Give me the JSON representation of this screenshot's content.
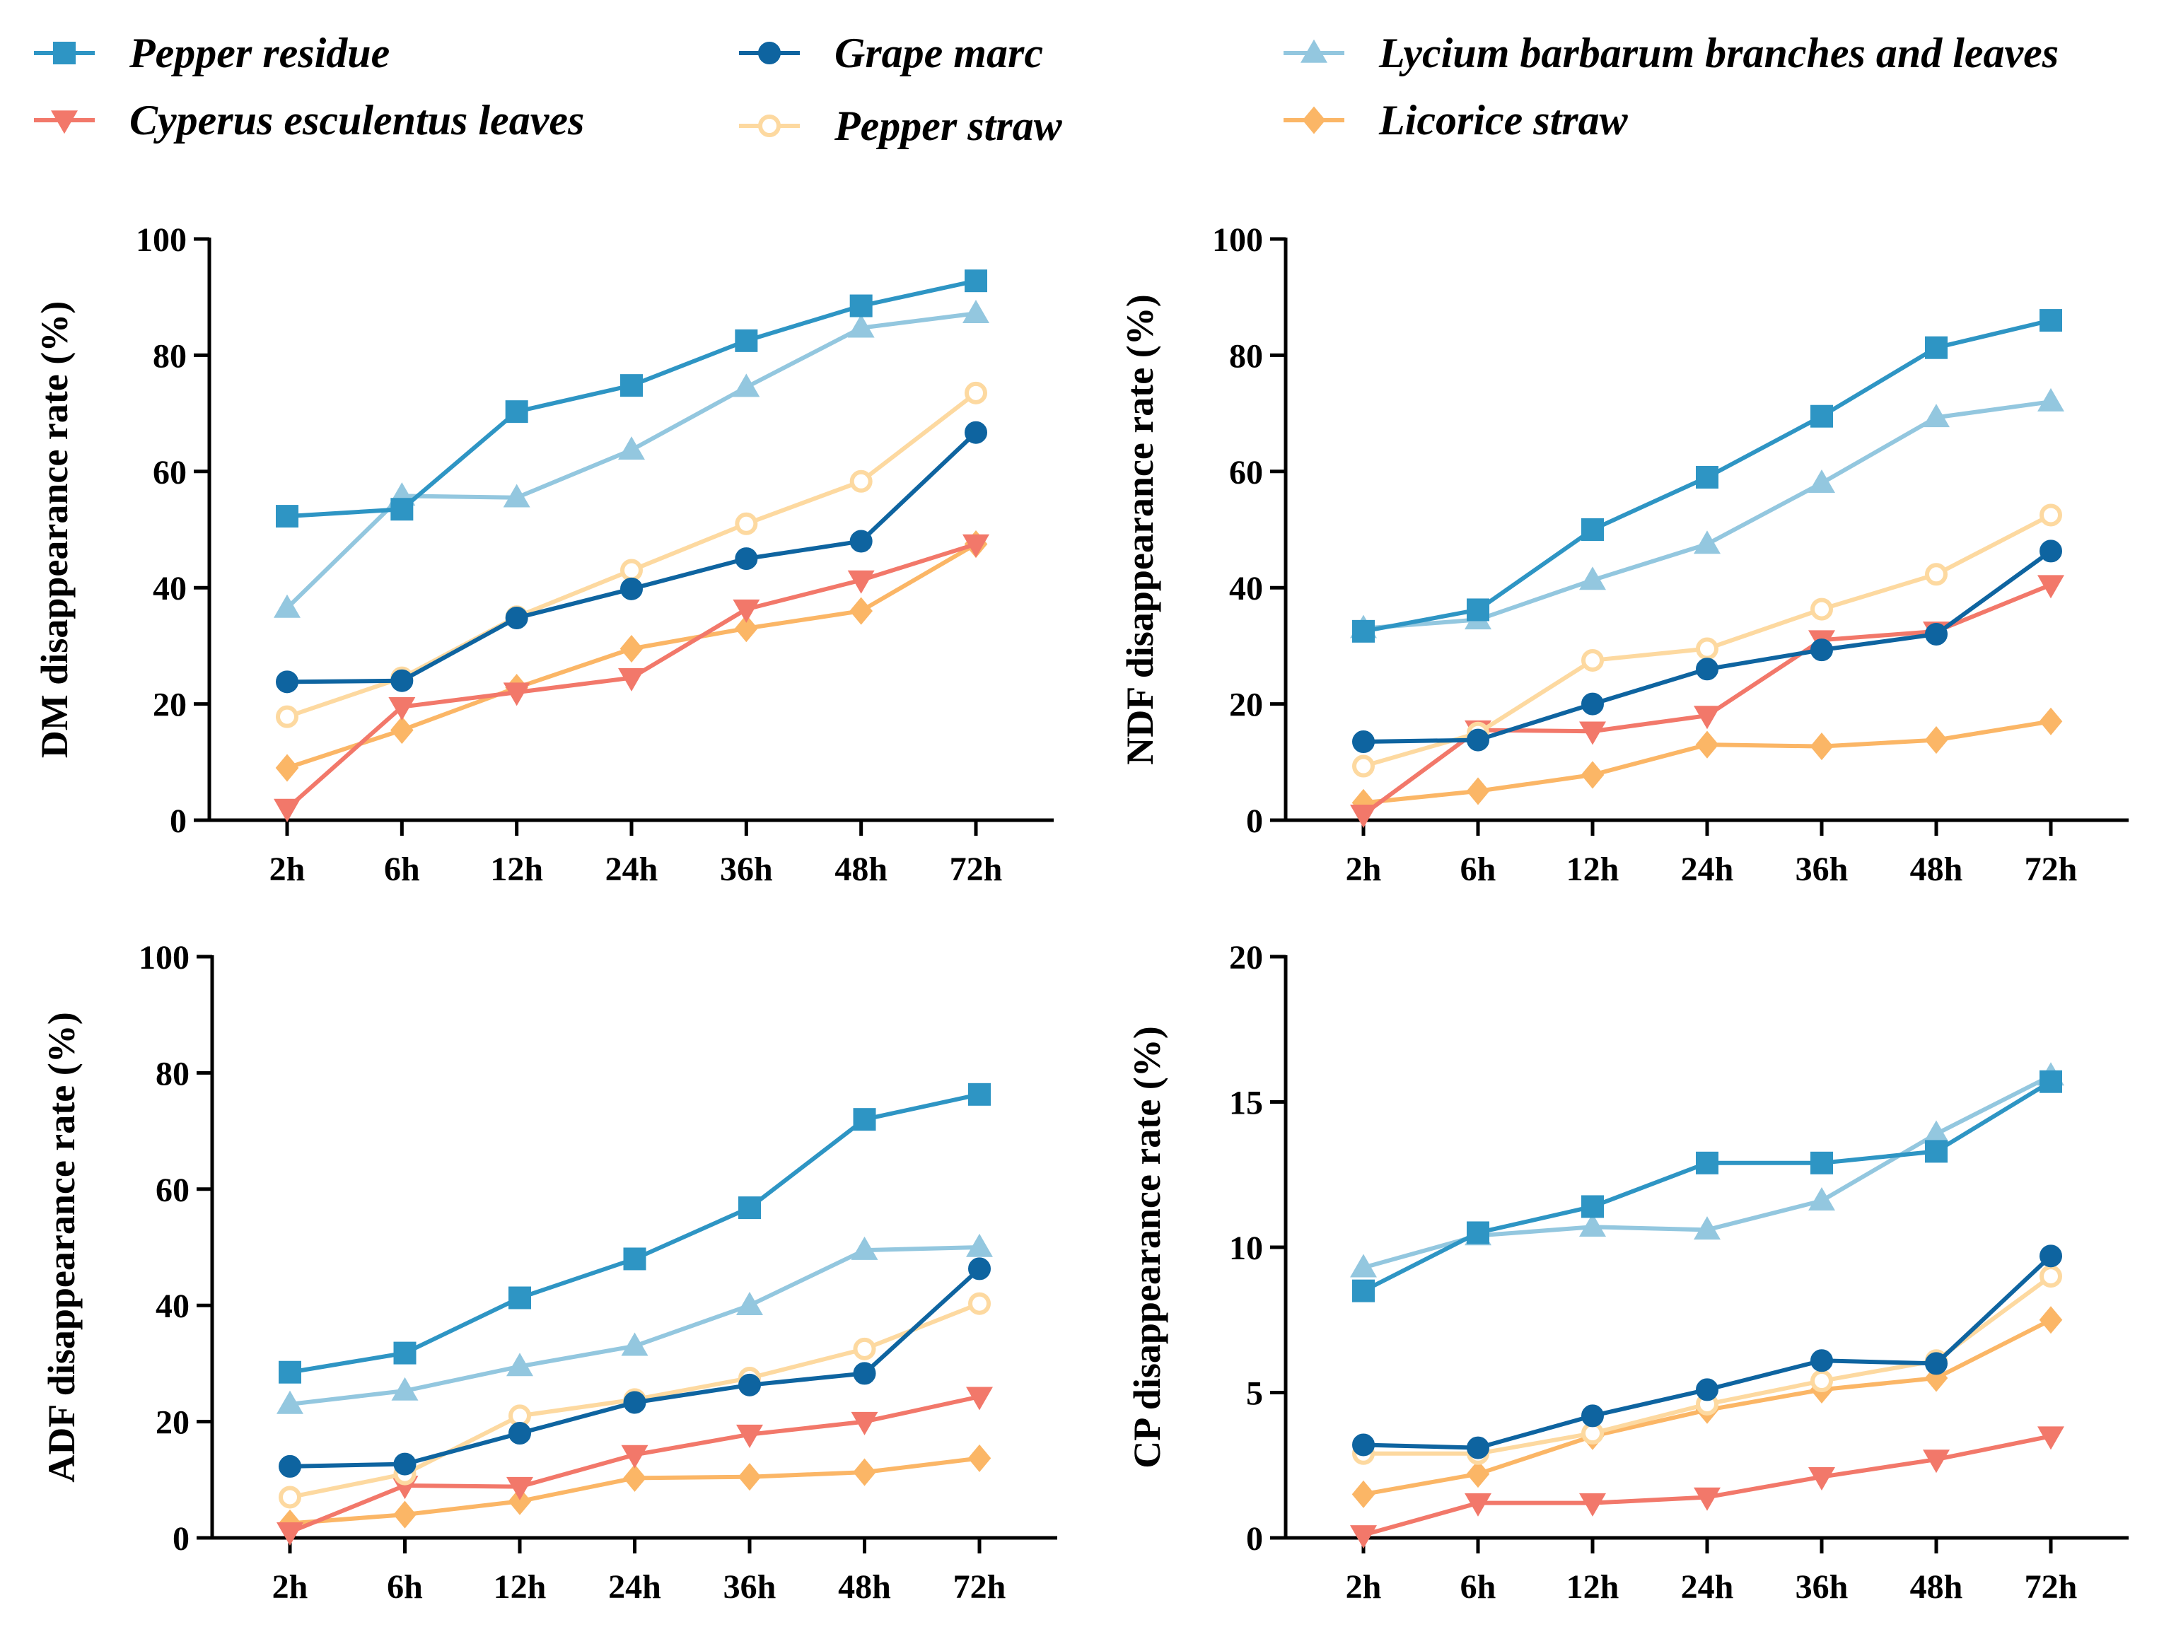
{
  "legend": {
    "position": "top",
    "items": [
      {
        "name": "Pepper residue",
        "color": "#2E95C4",
        "marker": "square",
        "filled": true
      },
      {
        "name": "Grape marc",
        "color": "#0E64A0",
        "marker": "circle",
        "filled": true
      },
      {
        "name": "Lycium barbarum branches and leaves",
        "color": "#93C7DF",
        "marker": "triangle-up",
        "filled": true
      },
      {
        "name": "Cyperus esculentus leaves",
        "color": "#F2786A",
        "marker": "triangle-down",
        "filled": true
      },
      {
        "name": "Pepper straw",
        "color": "#FDD9A0",
        "marker": "circle",
        "filled": false
      },
      {
        "name": "Licorice straw",
        "color": "#FBB666",
        "marker": "diamond",
        "filled": true
      }
    ]
  },
  "chart_data": [
    {
      "type": "line",
      "ylabel": "DM disappearance rate (%)",
      "xlabel": "",
      "categories": [
        "2h",
        "6h",
        "12h",
        "24h",
        "36h",
        "48h",
        "72h"
      ],
      "ylim": [
        0,
        100
      ],
      "yticks": [
        0,
        20,
        40,
        60,
        80,
        100
      ],
      "series": [
        {
          "name": "Pepper residue",
          "values": [
            52.3,
            53.5,
            70.3,
            74.8,
            82.5,
            88.5,
            92.8
          ]
        },
        {
          "name": "Lycium barbarum branches and leaves",
          "values": [
            36.5,
            55.8,
            55.5,
            63.7,
            74.5,
            84.7,
            87.2
          ]
        },
        {
          "name": "Pepper straw",
          "values": [
            17.8,
            24.5,
            35.0,
            43.0,
            51.0,
            58.3,
            73.5
          ]
        },
        {
          "name": "Grape marc",
          "values": [
            23.8,
            24.0,
            34.8,
            39.8,
            45.0,
            48.0,
            66.7
          ]
        },
        {
          "name": "Cyperus esculentus leaves",
          "values": [
            2.0,
            19.5,
            22.0,
            24.5,
            36.3,
            41.3,
            47.5
          ]
        },
        {
          "name": "Licorice straw",
          "values": [
            9.0,
            15.5,
            22.8,
            29.5,
            33.0,
            36.0,
            47.5
          ]
        }
      ]
    },
    {
      "type": "line",
      "ylabel": "NDF disappearance rate (%)",
      "xlabel": "",
      "categories": [
        "2h",
        "6h",
        "12h",
        "24h",
        "36h",
        "48h",
        "72h"
      ],
      "ylim": [
        0,
        100
      ],
      "yticks": [
        0,
        20,
        40,
        60,
        80,
        100
      ],
      "series": [
        {
          "name": "Pepper residue",
          "values": [
            32.5,
            36.2,
            50.0,
            59.0,
            69.5,
            81.3,
            86.0
          ]
        },
        {
          "name": "Lycium barbarum branches and leaves",
          "values": [
            33.0,
            34.5,
            41.3,
            47.5,
            58.0,
            69.3,
            72.0
          ]
        },
        {
          "name": "Pepper straw",
          "values": [
            9.3,
            15.0,
            27.5,
            29.5,
            36.3,
            42.3,
            52.5
          ]
        },
        {
          "name": "Grape marc",
          "values": [
            13.5,
            13.8,
            20.0,
            26.0,
            29.3,
            32.0,
            46.3
          ]
        },
        {
          "name": "Cyperus esculentus leaves",
          "values": [
            1.0,
            15.5,
            15.3,
            18.0,
            31.0,
            32.5,
            40.5
          ]
        },
        {
          "name": "Licorice straw",
          "values": [
            3.0,
            5.0,
            7.8,
            13.0,
            12.7,
            13.8,
            17.0
          ]
        }
      ]
    },
    {
      "type": "line",
      "ylabel": "ADF disappearance rate (%)",
      "xlabel": "",
      "categories": [
        "2h",
        "6h",
        "12h",
        "24h",
        "36h",
        "48h",
        "72h"
      ],
      "ylim": [
        0,
        100
      ],
      "yticks": [
        0,
        20,
        40,
        60,
        80,
        100
      ],
      "series": [
        {
          "name": "Pepper residue",
          "values": [
            28.5,
            31.8,
            41.3,
            48.0,
            56.8,
            72.0,
            76.3
          ]
        },
        {
          "name": "Lycium barbarum branches and leaves",
          "values": [
            23.0,
            25.3,
            29.5,
            33.0,
            40.0,
            49.5,
            50.0
          ]
        },
        {
          "name": "Pepper straw",
          "values": [
            7.0,
            11.0,
            21.0,
            23.8,
            27.5,
            32.5,
            40.3
          ]
        },
        {
          "name": "Grape marc",
          "values": [
            12.3,
            12.7,
            18.0,
            23.3,
            26.3,
            28.3,
            46.3
          ]
        },
        {
          "name": "Cyperus esculentus leaves",
          "values": [
            1.0,
            9.0,
            8.8,
            14.3,
            17.8,
            20.0,
            24.3
          ]
        },
        {
          "name": "Licorice straw",
          "values": [
            2.5,
            4.0,
            6.3,
            10.3,
            10.5,
            11.3,
            13.7
          ]
        }
      ]
    },
    {
      "type": "line",
      "ylabel": "CP disappearance rate (%)",
      "xlabel": "",
      "categories": [
        "2h",
        "6h",
        "12h",
        "24h",
        "36h",
        "48h",
        "72h"
      ],
      "ylim": [
        0,
        20
      ],
      "yticks": [
        0,
        5,
        10,
        15,
        20
      ],
      "series": [
        {
          "name": "Pepper residue",
          "values": [
            8.5,
            10.5,
            11.4,
            12.9,
            12.9,
            13.3,
            15.7
          ]
        },
        {
          "name": "Lycium barbarum branches and leaves",
          "values": [
            9.3,
            10.4,
            10.7,
            10.6,
            11.6,
            13.9,
            15.9
          ]
        },
        {
          "name": "Pepper straw",
          "values": [
            2.9,
            2.9,
            3.6,
            4.6,
            5.4,
            6.1,
            9.0
          ]
        },
        {
          "name": "Grape marc",
          "values": [
            3.2,
            3.1,
            4.2,
            5.1,
            6.1,
            6.0,
            9.7
          ]
        },
        {
          "name": "Cyperus esculentus leaves",
          "values": [
            0.1,
            1.2,
            1.2,
            1.4,
            2.1,
            2.7,
            3.5
          ]
        },
        {
          "name": "Licorice straw",
          "values": [
            1.5,
            2.2,
            3.5,
            4.4,
            5.1,
            5.5,
            7.5
          ]
        }
      ]
    }
  ]
}
